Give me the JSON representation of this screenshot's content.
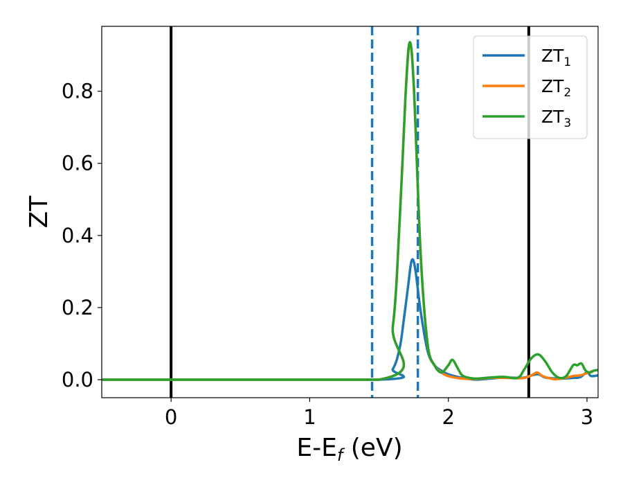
{
  "chart_data": {
    "type": "line",
    "title": "",
    "xlabel": {
      "main": "E-E",
      "sub": "f",
      "suffix": " (eV)"
    },
    "ylabel": "ZT",
    "xlim": [
      -0.5,
      3.08
    ],
    "ylim": [
      -0.05,
      0.98
    ],
    "xticks": [
      0,
      1,
      2,
      3
    ],
    "xtick_labels": [
      "0",
      "1",
      "2",
      "3"
    ],
    "yticks": [
      0.0,
      0.2,
      0.4,
      0.6,
      0.8
    ],
    "ytick_labels": [
      "0.0",
      "0.2",
      "0.4",
      "0.6",
      "0.8"
    ],
    "grid": false,
    "legend_position": "top-right",
    "vlines": [
      {
        "x": 0.0,
        "style": "solid",
        "color": "#000000"
      },
      {
        "x": 2.58,
        "style": "solid",
        "color": "#000000"
      },
      {
        "x": 1.45,
        "style": "dashed",
        "color": "#1f77b4"
      },
      {
        "x": 1.78,
        "style": "dashed",
        "color": "#1f77b4"
      }
    ],
    "series": [
      {
        "name": "ZT",
        "sub": "1",
        "color": "#1f77b4",
        "x": [
          -0.5,
          1.5,
          1.6,
          1.65,
          1.68,
          1.71,
          1.735,
          1.76,
          1.8,
          1.85,
          1.9,
          1.95,
          2.0,
          2.1,
          2.2,
          2.3,
          2.4,
          2.5,
          2.55,
          2.6,
          2.65,
          2.7,
          2.8,
          2.9,
          2.95,
          3.0,
          3.03,
          3.08
        ],
        "y": [
          0.0,
          0.0,
          0.03,
          0.09,
          0.17,
          0.26,
          0.33,
          0.31,
          0.19,
          0.08,
          0.04,
          0.025,
          0.015,
          0.005,
          0.0,
          0.003,
          0.006,
          0.005,
          0.006,
          0.012,
          0.015,
          0.006,
          0.003,
          0.005,
          0.007,
          0.02,
          0.01,
          0.012
        ]
      },
      {
        "name": "ZT",
        "sub": "2",
        "color": "#ff7f0e",
        "x": [
          -0.5,
          1.5,
          1.6,
          1.65,
          1.69,
          1.72,
          1.75,
          1.8,
          1.85,
          1.9,
          1.95,
          2.0,
          2.1,
          2.2,
          2.3,
          2.4,
          2.5,
          2.55,
          2.6,
          2.64,
          2.68,
          2.75,
          2.8,
          2.9,
          2.95,
          3.0,
          3.05,
          3.08
        ],
        "y": [
          0.0,
          0.0,
          0.15,
          0.45,
          0.78,
          0.93,
          0.82,
          0.35,
          0.1,
          0.04,
          0.02,
          0.01,
          0.003,
          0.002,
          0.005,
          0.005,
          0.004,
          0.005,
          0.012,
          0.02,
          0.01,
          0.002,
          0.002,
          0.01,
          0.012,
          0.018,
          0.025,
          0.027
        ]
      },
      {
        "name": "ZT",
        "sub": "3",
        "color": "#2ca02c",
        "x": [
          -0.5,
          1.5,
          1.6,
          1.65,
          1.69,
          1.72,
          1.75,
          1.8,
          1.85,
          1.9,
          1.95,
          2.0,
          2.03,
          2.07,
          2.1,
          2.15,
          2.2,
          2.3,
          2.4,
          2.5,
          2.55,
          2.6,
          2.65,
          2.7,
          2.75,
          2.8,
          2.85,
          2.9,
          2.93,
          2.96,
          2.99,
          3.02,
          3.05,
          3.08
        ],
        "y": [
          0.0,
          0.0,
          0.15,
          0.45,
          0.78,
          0.935,
          0.82,
          0.35,
          0.1,
          0.04,
          0.02,
          0.04,
          0.055,
          0.03,
          0.012,
          0.005,
          0.003,
          0.006,
          0.008,
          0.005,
          0.03,
          0.06,
          0.07,
          0.05,
          0.02,
          0.005,
          0.01,
          0.04,
          0.04,
          0.045,
          0.025,
          0.02,
          0.025,
          0.027
        ]
      }
    ]
  }
}
